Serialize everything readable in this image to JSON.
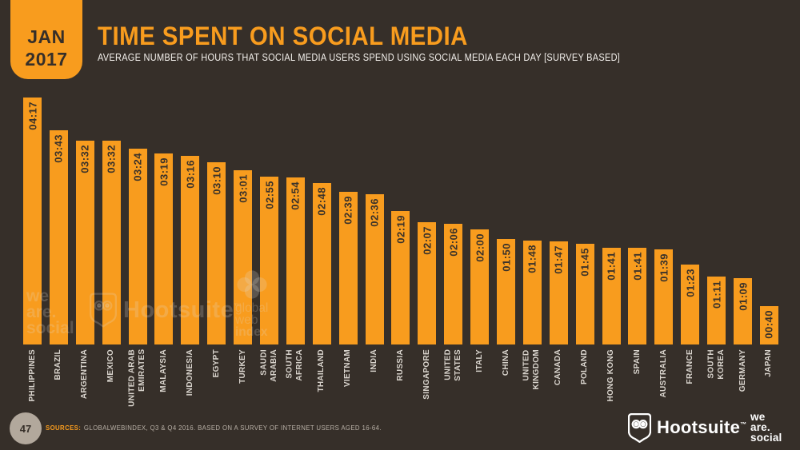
{
  "colors": {
    "accent": "#f89c1e",
    "background": "#362f29",
    "bar_label": "#3a322a",
    "axis_label": "#d9d4cd",
    "subtitle_text": "#f2efeb",
    "source_text": "#b7afa5",
    "page_circle": "#b2a89c",
    "watermark": "rgba(226,221,214,0.22)",
    "logo": "#ffffff"
  },
  "header": {
    "badge_month": "JAN",
    "badge_year": "2017",
    "title": "TIME SPENT ON SOCIAL MEDIA",
    "subtitle": "AVERAGE NUMBER OF HOURS THAT SOCIAL MEDIA USERS SPEND USING SOCIAL MEDIA EACH DAY [SURVEY BASED]"
  },
  "chart_data": {
    "type": "bar",
    "title": "TIME SPENT ON SOCIAL MEDIA",
    "subtitle": "AVERAGE NUMBER OF HOURS THAT SOCIAL MEDIA USERS SPEND USING SOCIAL MEDIA EACH DAY [SURVEY BASED]",
    "value_format": "hh:mm per day",
    "xlabel": "",
    "ylabel": "",
    "grid": false,
    "ylim_minutes": [
      0,
      257
    ],
    "bar_color": "#f89c1e",
    "value_labels_rotated": true,
    "categories": [
      "PHILIPPINES",
      "BRAZIL",
      "ARGENTINA",
      "MEXICO",
      "UNITED ARAB\nEMIRATES",
      "MALAYSIA",
      "INDONESIA",
      "EGYPT",
      "TURKEY",
      "SAUDI\nARABIA",
      "SOUTH\nAFRICA",
      "THAILAND",
      "VIETNAM",
      "INDIA",
      "RUSSIA",
      "SINGAPORE",
      "UNITED\nSTATES",
      "ITALY",
      "CHINA",
      "UNITED\nKINGDOM",
      "CANADA",
      "POLAND",
      "HONG KONG",
      "SPAIN",
      "AUSTRALIA",
      "FRANCE",
      "SOUTH\nKOREA",
      "GERMANY",
      "JAPAN"
    ],
    "values": [
      "04:17",
      "03:43",
      "03:32",
      "03:32",
      "03:24",
      "03:19",
      "03:16",
      "03:10",
      "03:01",
      "02:55",
      "02:54",
      "02:48",
      "02:39",
      "02:36",
      "02:19",
      "02:07",
      "02:06",
      "02:00",
      "01:50",
      "01:48",
      "01:47",
      "01:45",
      "01:41",
      "01:41",
      "01:39",
      "01:23",
      "01:11",
      "01:09",
      "00:40"
    ],
    "values_minutes": [
      257,
      223,
      212,
      212,
      204,
      199,
      196,
      190,
      181,
      175,
      174,
      168,
      159,
      156,
      139,
      127,
      126,
      120,
      110,
      108,
      107,
      105,
      101,
      101,
      99,
      83,
      71,
      69,
      40
    ]
  },
  "watermarks": {
    "wearesocial": "we\nare.\nsocial",
    "hootsuite": "Hootsuite",
    "hootsuite_tm": "™",
    "gwi_light": "global\nweb",
    "gwi_bold": "index"
  },
  "footer": {
    "page_number": "47",
    "sources_label": "SOURCES:",
    "sources_text": "GLOBALWEBINDEX, Q3 & Q4 2016. BASED ON A SURVEY OF INTERNET USERS AGED 16-64.",
    "hootsuite_label": "Hootsuite",
    "hootsuite_tm": "™",
    "wearesocial": "we\nare.\nsocial"
  }
}
